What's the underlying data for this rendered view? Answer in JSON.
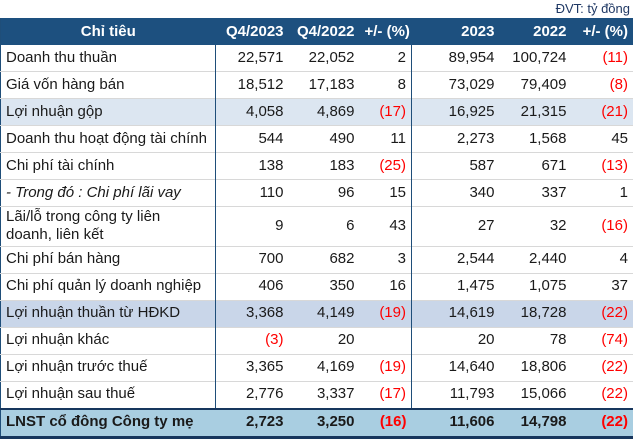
{
  "unit_label": "ĐVT: tỷ đồng",
  "colors": {
    "header_bg": "#1D507F",
    "header_text": "#FFFFFF",
    "row_highlight_light": "#DCE6F1",
    "row_highlight_medium": "#C9D6E9",
    "row_total": "#A9CEE1",
    "negative_value": "#FF0000",
    "body_text": "#1A1A1A",
    "unit_text": "#1F3864",
    "border_blue": "#1F4E79",
    "border_navy": "#17365D",
    "gridline": "#D8D8D8"
  },
  "table": {
    "columns": [
      "Chỉ tiêu",
      "Q4/2023",
      "Q4/2022",
      "+/- (%)",
      "2023",
      "2022",
      "+/- (%)"
    ],
    "rows": [
      {
        "label": "Doanh thu thuần",
        "values": [
          "22,571",
          "22,052",
          "2",
          "89,954",
          "100,724",
          "(11)"
        ],
        "style": "normal"
      },
      {
        "label": "Giá vốn hàng bán",
        "values": [
          "18,512",
          "17,183",
          "8",
          "73,029",
          "79,409",
          "(8)"
        ],
        "style": "normal"
      },
      {
        "label": "Lợi nhuận gộp",
        "values": [
          "4,058",
          "4,869",
          "(17)",
          "16,925",
          "21,315",
          "(21)"
        ],
        "style": "subtotal-light"
      },
      {
        "label": "Doanh thu hoạt động tài chính",
        "values": [
          "544",
          "490",
          "11",
          "2,273",
          "1,568",
          "45"
        ],
        "style": "normal"
      },
      {
        "label": "Chi phí tài chính",
        "values": [
          "138",
          "183",
          "(25)",
          "587",
          "671",
          "(13)"
        ],
        "style": "normal"
      },
      {
        "label": "- Trong đó : Chi phí lãi vay",
        "values": [
          "110",
          "96",
          "15",
          "340",
          "337",
          "1"
        ],
        "style": "italic"
      },
      {
        "label": "Lãi/lỗ trong công ty liên doanh, liên kết",
        "values": [
          "9",
          "6",
          "43",
          "27",
          "32",
          "(16)"
        ],
        "style": "normal"
      },
      {
        "label": "Chi phí bán hàng",
        "values": [
          "700",
          "682",
          "3",
          "2,544",
          "2,440",
          "4"
        ],
        "style": "normal"
      },
      {
        "label": "Chi phí quản lý doanh nghiệp",
        "values": [
          "406",
          "350",
          "16",
          "1,475",
          "1,075",
          "37"
        ],
        "style": "normal"
      },
      {
        "label": "Lợi nhuận thuần từ HĐKD",
        "values": [
          "3,368",
          "4,149",
          "(19)",
          "14,619",
          "18,728",
          "(22)"
        ],
        "style": "subtotal-medium"
      },
      {
        "label": "Lợi nhuận khác",
        "values": [
          "(3)",
          "20",
          "",
          "20",
          "78",
          "(74)"
        ],
        "style": "normal"
      },
      {
        "label": "Lợi nhuận trước thuế",
        "values": [
          "3,365",
          "4,169",
          "(19)",
          "14,640",
          "18,806",
          "(22)"
        ],
        "style": "normal"
      },
      {
        "label": "Lợi nhuận sau thuế",
        "values": [
          "2,776",
          "3,337",
          "(17)",
          "11,793",
          "15,066",
          "(22)"
        ],
        "style": "normal"
      },
      {
        "label": "LNST cổ đông Công ty mẹ",
        "values": [
          "2,723",
          "3,250",
          "(16)",
          "11,606",
          "14,798",
          "(22)"
        ],
        "style": "total"
      }
    ]
  },
  "chart_data": {
    "type": "table",
    "title": "",
    "unit_annotation": "ĐVT: tỷ đồng",
    "columns": [
      "Chỉ tiêu",
      "Q4/2023",
      "Q4/2022",
      "+/- (%)",
      "2023",
      "2022",
      "+/- (%)"
    ],
    "rows": [
      {
        "label": "Doanh thu thuần",
        "values": [
          22571,
          22052,
          2,
          89954,
          100724,
          -11
        ]
      },
      {
        "label": "Giá vốn hàng bán",
        "values": [
          18512,
          17183,
          8,
          73029,
          79409,
          -8
        ]
      },
      {
        "label": "Lợi nhuận gộp",
        "values": [
          4058,
          4869,
          -17,
          16925,
          21315,
          -21
        ]
      },
      {
        "label": "Doanh thu hoạt động tài chính",
        "values": [
          544,
          490,
          11,
          2273,
          1568,
          45
        ]
      },
      {
        "label": "Chi phí tài chính",
        "values": [
          138,
          183,
          -25,
          587,
          671,
          -13
        ]
      },
      {
        "label": "- Trong đó : Chi phí lãi vay",
        "values": [
          110,
          96,
          15,
          340,
          337,
          1
        ]
      },
      {
        "label": "Lãi/lỗ trong công ty liên doanh, liên kết",
        "values": [
          9,
          6,
          43,
          27,
          32,
          -16
        ]
      },
      {
        "label": "Chi phí bán hàng",
        "values": [
          700,
          682,
          3,
          2544,
          2440,
          4
        ]
      },
      {
        "label": "Chi phí quản lý doanh nghiệp",
        "values": [
          406,
          350,
          16,
          1475,
          1075,
          37
        ]
      },
      {
        "label": "Lợi nhuận thuần từ HĐKD",
        "values": [
          3368,
          4149,
          -19,
          14619,
          18728,
          -22
        ]
      },
      {
        "label": "Lợi nhuận khác",
        "values": [
          -3,
          20,
          null,
          20,
          78,
          -74
        ]
      },
      {
        "label": "Lợi nhuận trước thuế",
        "values": [
          3365,
          4169,
          -19,
          14640,
          18806,
          -22
        ]
      },
      {
        "label": "Lợi nhuận sau thuế",
        "values": [
          2776,
          3337,
          -17,
          11793,
          15066,
          -22
        ]
      },
      {
        "label": "LNST cổ đông Công ty mẹ",
        "values": [
          2723,
          3250,
          -16,
          11606,
          14798,
          -22
        ]
      }
    ]
  }
}
